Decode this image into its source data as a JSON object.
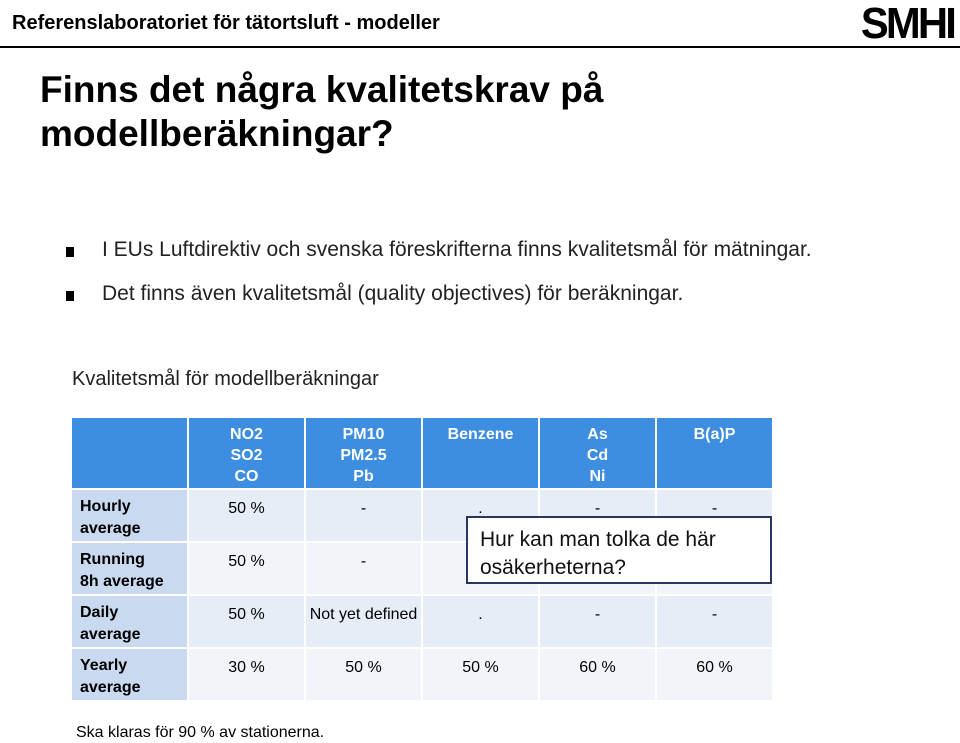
{
  "header": {
    "title": "Referenslaboratoriet för tätortsluft - modeller",
    "logo": "SMHI"
  },
  "slide": {
    "title": "Finns det några kvalitetskrav på modellberäkningar?",
    "bullets": [
      "I EUs Luftdirektiv och svenska föreskrifterna finns kvalitetsmål för mätningar.",
      "Det finns även kvalitetsmål (quality objectives) för beräkningar."
    ],
    "table_heading": "Kvalitetsmål för modellberäkningar"
  },
  "table": {
    "columns": [
      [
        "NO2",
        "SO2",
        "CO"
      ],
      [
        "PM10",
        "PM2.5",
        "Pb"
      ],
      [
        "Benzene"
      ],
      [
        "As",
        "Cd",
        "Ni"
      ],
      [
        "B(a)P"
      ]
    ],
    "rows": [
      {
        "label": [
          "Hourly",
          "average"
        ],
        "values": [
          "50 %",
          "-",
          ".",
          "-",
          "-"
        ]
      },
      {
        "label": [
          "Running",
          "8h average"
        ],
        "values": [
          "50 %",
          "-",
          "",
          "",
          ""
        ]
      },
      {
        "label": [
          "Daily",
          "average"
        ],
        "values": [
          "50 %",
          "Not yet defined",
          ".",
          "-",
          "-"
        ]
      },
      {
        "label": [
          "Yearly",
          "average"
        ],
        "values": [
          "30 %",
          "50 %",
          "50 %",
          "60 %",
          "60 %"
        ]
      }
    ]
  },
  "callout": {
    "line1": "Hur kan man tolka de här",
    "line2": "osäkerheterna?"
  },
  "footnote": "Ska klaras för 90 % av stationerna."
}
